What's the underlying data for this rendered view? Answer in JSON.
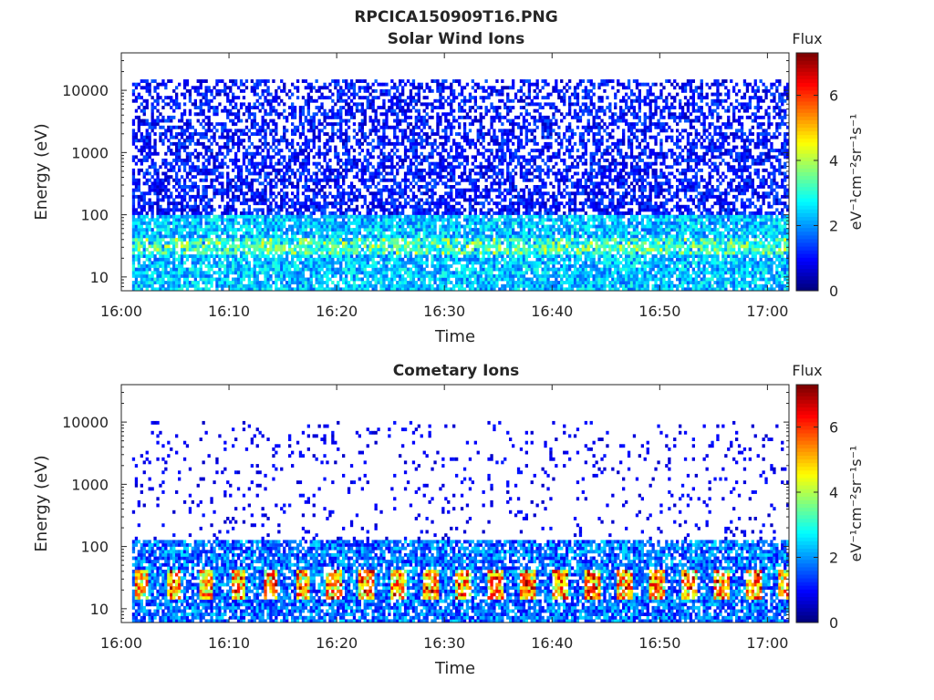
{
  "figure": {
    "title": "RPCICA150909T16.PNG"
  },
  "colorbar": {
    "title": "Flux",
    "label": "eV⁻¹cm⁻²sr⁻¹s⁻¹",
    "ticks": [
      "0",
      "2",
      "4",
      "6"
    ],
    "range": [
      0,
      7.3
    ],
    "colormap": "jet"
  },
  "chart_data": [
    {
      "type": "heatmap",
      "title": "Solar Wind Ions",
      "xlabel": "Time",
      "ylabel": "Energy (eV)",
      "xticks": [
        "16:00",
        "16:10",
        "16:20",
        "16:30",
        "16:40",
        "16:50",
        "17:00"
      ],
      "yticks": [
        "10",
        "100",
        "1000",
        "10000"
      ],
      "xlim": [
        "16:00",
        "17:02"
      ],
      "ylim": [
        6,
        40000
      ],
      "yscale": "log",
      "data_start": "16:01",
      "data_end": "17:02",
      "description_bands": [
        {
          "energy_range": [
            8,
            100
          ],
          "flux_level": "2-3"
        },
        {
          "energy_range": [
            25,
            40
          ],
          "flux_level": "3.5-5"
        },
        {
          "energy_range": [
            100,
            15000
          ],
          "flux_level": "0.5-1.5"
        }
      ]
    },
    {
      "type": "heatmap",
      "title": "Cometary Ions",
      "xlabel": "Time",
      "ylabel": "Energy (eV)",
      "xticks": [
        "16:00",
        "16:10",
        "16:20",
        "16:30",
        "16:40",
        "16:50",
        "17:00"
      ],
      "yticks": [
        "10",
        "100",
        "1000",
        "10000"
      ],
      "xlim": [
        "16:00",
        "17:02"
      ],
      "ylim": [
        6,
        40000
      ],
      "yscale": "log",
      "data_start": "16:01",
      "data_end": "17:02",
      "description_bands": [
        {
          "energy_range": [
            8,
            120
          ],
          "flux_level": "1-3"
        },
        {
          "energy_range": [
            15,
            40
          ],
          "flux_level": "4-7"
        },
        {
          "energy_range": [
            300,
            10000
          ],
          "flux_level": "0.5-1"
        }
      ]
    }
  ]
}
